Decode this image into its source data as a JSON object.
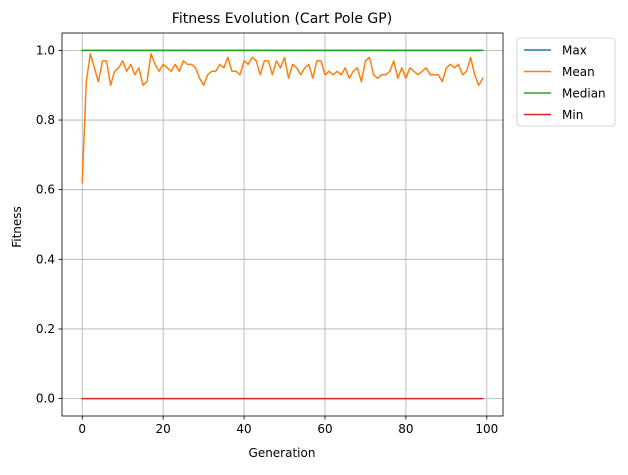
{
  "chart_data": {
    "type": "line",
    "title": "Fitness Evolution (Cart Pole GP)",
    "xlabel": "Generation",
    "ylabel": "Fitness",
    "xlim": [
      -5,
      104
    ],
    "ylim": [
      -0.05,
      1.05
    ],
    "xticks": [
      0,
      20,
      40,
      60,
      80,
      100
    ],
    "yticks": [
      0.0,
      0.2,
      0.4,
      0.6,
      0.8,
      1.0
    ],
    "xtick_labels": [
      "0",
      "20",
      "40",
      "60",
      "80",
      "100"
    ],
    "ytick_labels": [
      "0.0",
      "0.2",
      "0.4",
      "0.6",
      "0.8",
      "1.0"
    ],
    "grid": true,
    "legend_position": "outside-top-right",
    "x": [
      0,
      1,
      2,
      3,
      4,
      5,
      6,
      7,
      8,
      9,
      10,
      11,
      12,
      13,
      14,
      15,
      16,
      17,
      18,
      19,
      20,
      21,
      22,
      23,
      24,
      25,
      26,
      27,
      28,
      29,
      30,
      31,
      32,
      33,
      34,
      35,
      36,
      37,
      38,
      39,
      40,
      41,
      42,
      43,
      44,
      45,
      46,
      47,
      48,
      49,
      50,
      51,
      52,
      53,
      54,
      55,
      56,
      57,
      58,
      59,
      60,
      61,
      62,
      63,
      64,
      65,
      66,
      67,
      68,
      69,
      70,
      71,
      72,
      73,
      74,
      75,
      76,
      77,
      78,
      79,
      80,
      81,
      82,
      83,
      84,
      85,
      86,
      87,
      88,
      89,
      90,
      91,
      92,
      93,
      94,
      95,
      96,
      97,
      98,
      99
    ],
    "series": [
      {
        "name": "Max",
        "color": "#1f77b4",
        "values": [
          1,
          1,
          1,
          1,
          1,
          1,
          1,
          1,
          1,
          1,
          1,
          1,
          1,
          1,
          1,
          1,
          1,
          1,
          1,
          1,
          1,
          1,
          1,
          1,
          1,
          1,
          1,
          1,
          1,
          1,
          1,
          1,
          1,
          1,
          1,
          1,
          1,
          1,
          1,
          1,
          1,
          1,
          1,
          1,
          1,
          1,
          1,
          1,
          1,
          1,
          1,
          1,
          1,
          1,
          1,
          1,
          1,
          1,
          1,
          1,
          1,
          1,
          1,
          1,
          1,
          1,
          1,
          1,
          1,
          1,
          1,
          1,
          1,
          1,
          1,
          1,
          1,
          1,
          1,
          1,
          1,
          1,
          1,
          1,
          1,
          1,
          1,
          1,
          1,
          1,
          1,
          1,
          1,
          1,
          1,
          1,
          1,
          1,
          1,
          1
        ]
      },
      {
        "name": "Mean",
        "color": "#ff7f0e",
        "values": [
          0.62,
          0.91,
          0.99,
          0.95,
          0.91,
          0.97,
          0.97,
          0.9,
          0.94,
          0.95,
          0.97,
          0.94,
          0.96,
          0.93,
          0.95,
          0.9,
          0.91,
          0.99,
          0.96,
          0.94,
          0.96,
          0.95,
          0.94,
          0.96,
          0.94,
          0.97,
          0.96,
          0.96,
          0.95,
          0.92,
          0.9,
          0.93,
          0.94,
          0.94,
          0.96,
          0.95,
          0.98,
          0.94,
          0.94,
          0.93,
          0.97,
          0.96,
          0.98,
          0.97,
          0.93,
          0.97,
          0.97,
          0.93,
          0.97,
          0.95,
          0.98,
          0.92,
          0.96,
          0.95,
          0.93,
          0.95,
          0.96,
          0.92,
          0.97,
          0.97,
          0.93,
          0.94,
          0.93,
          0.94,
          0.93,
          0.95,
          0.92,
          0.94,
          0.95,
          0.91,
          0.97,
          0.98,
          0.93,
          0.92,
          0.93,
          0.93,
          0.94,
          0.97,
          0.92,
          0.95,
          0.92,
          0.95,
          0.94,
          0.93,
          0.94,
          0.95,
          0.93,
          0.93,
          0.93,
          0.91,
          0.95,
          0.96,
          0.95,
          0.96,
          0.93,
          0.94,
          0.98,
          0.93,
          0.9,
          0.92
        ]
      },
      {
        "name": "Median",
        "color": "#2ca02c",
        "values": [
          1,
          1,
          1,
          1,
          1,
          1,
          1,
          1,
          1,
          1,
          1,
          1,
          1,
          1,
          1,
          1,
          1,
          1,
          1,
          1,
          1,
          1,
          1,
          1,
          1,
          1,
          1,
          1,
          1,
          1,
          1,
          1,
          1,
          1,
          1,
          1,
          1,
          1,
          1,
          1,
          1,
          1,
          1,
          1,
          1,
          1,
          1,
          1,
          1,
          1,
          1,
          1,
          1,
          1,
          1,
          1,
          1,
          1,
          1,
          1,
          1,
          1,
          1,
          1,
          1,
          1,
          1,
          1,
          1,
          1,
          1,
          1,
          1,
          1,
          1,
          1,
          1,
          1,
          1,
          1,
          1,
          1,
          1,
          1,
          1,
          1,
          1,
          1,
          1,
          1,
          1,
          1,
          1,
          1,
          1,
          1,
          1,
          1,
          1,
          1
        ]
      },
      {
        "name": "Min",
        "color": "#d62728",
        "values": [
          0,
          0,
          0,
          0,
          0,
          0,
          0,
          0,
          0,
          0,
          0,
          0,
          0,
          0,
          0,
          0,
          0,
          0,
          0,
          0,
          0,
          0,
          0,
          0,
          0,
          0,
          0,
          0,
          0,
          0,
          0,
          0,
          0,
          0,
          0,
          0,
          0,
          0,
          0,
          0,
          0,
          0,
          0,
          0,
          0,
          0,
          0,
          0,
          0,
          0,
          0,
          0,
          0,
          0,
          0,
          0,
          0,
          0,
          0,
          0,
          0,
          0,
          0,
          0,
          0,
          0,
          0,
          0,
          0,
          0,
          0,
          0,
          0,
          0,
          0,
          0,
          0,
          0,
          0,
          0,
          0,
          0,
          0,
          0,
          0,
          0,
          0,
          0,
          0,
          0,
          0,
          0,
          0,
          0,
          0,
          0,
          0,
          0,
          0,
          0
        ]
      }
    ]
  }
}
